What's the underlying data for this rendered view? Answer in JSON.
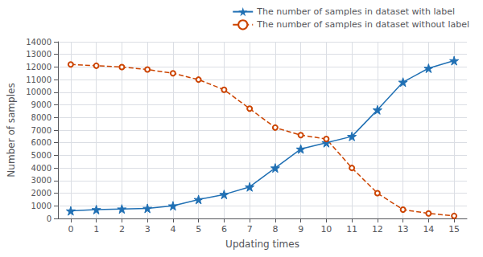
{
  "chart_data": {
    "type": "line",
    "xlabel": "Updating times",
    "ylabel": "Number of samples",
    "x": [
      0,
      1,
      2,
      3,
      4,
      5,
      6,
      7,
      8,
      9,
      10,
      11,
      12,
      13,
      14,
      15
    ],
    "series": [
      {
        "name": "The number of samples in dataset with label",
        "color": "#2070b4",
        "marker": "star",
        "line_style": "solid",
        "values": [
          600,
          700,
          750,
          800,
          1000,
          1500,
          1900,
          2500,
          4000,
          5500,
          6000,
          6500,
          8600,
          10800,
          11900,
          12500
        ]
      },
      {
        "name": "The number of samples in dataset without label",
        "color": "#cc4400",
        "marker": "circle",
        "line_style": "dashed",
        "values": [
          12200,
          12100,
          12000,
          11800,
          11500,
          11000,
          10200,
          8700,
          7200,
          6600,
          6300,
          4000,
          2000,
          700,
          400,
          200
        ]
      }
    ],
    "xlim": [
      -0.5,
      15.5
    ],
    "xticks": [
      0,
      1,
      2,
      3,
      4,
      5,
      6,
      7,
      8,
      9,
      10,
      11,
      12,
      13,
      14,
      15
    ],
    "ylim": [
      0,
      14000
    ],
    "yticks": [
      0,
      1000,
      2000,
      3000,
      4000,
      5000,
      6000,
      7000,
      8000,
      9000,
      10000,
      11000,
      12000,
      13000,
      14000
    ],
    "grid": true,
    "legend": "upper right"
  }
}
